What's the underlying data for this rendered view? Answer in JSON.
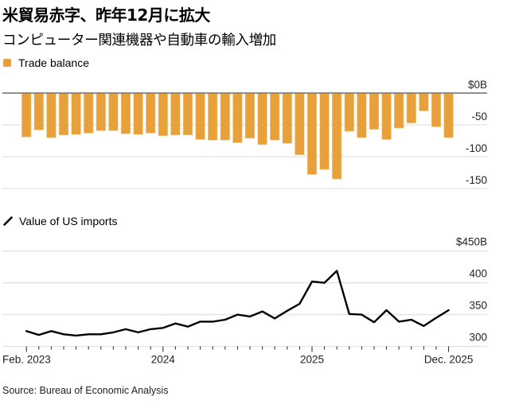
{
  "title": "米貿易赤字、昨年12月に拡大",
  "subtitle": "コンピューター関連機器や自動車の輸入増加",
  "source": "Source: Bureau of Economic Analysis",
  "colors": {
    "bar": "#E8A03A",
    "line": "#000000",
    "grid": "#e2e2e2",
    "zero_line": "#808080"
  },
  "chart_data": [
    {
      "type": "bar",
      "legend": "Trade balance",
      "legend_icon": "square-swatch-icon",
      "unit": "$B",
      "ylim": [
        -150,
        0
      ],
      "yticks": [
        0,
        -50,
        -100,
        -150
      ],
      "ytick_labels": [
        "$0B",
        "-50",
        "-100",
        "-150"
      ],
      "grid": true,
      "x_start": "Feb. 2023",
      "x_end": "Dec. 2025",
      "values": [
        -69,
        -58,
        -70,
        -66,
        -65,
        -63,
        -59,
        -59,
        -64,
        -65,
        -63,
        -67,
        -66,
        -66,
        -73,
        -74,
        -74,
        -78,
        -71,
        -81,
        -74,
        -79,
        -97,
        -128,
        -120,
        -135,
        -60,
        -70,
        -57,
        -73,
        -55,
        -47,
        -28,
        -53,
        -70
      ]
    },
    {
      "type": "line",
      "legend": "Value of US imports",
      "legend_icon": "line-swatch-icon",
      "unit": "$B",
      "ylim": [
        300,
        450
      ],
      "yticks": [
        450,
        400,
        350,
        300
      ],
      "ytick_labels": [
        "$450B",
        "400",
        "350",
        "300"
      ],
      "grid": true,
      "xtick_labels": [
        {
          "index": 0,
          "label": "Feb. 2023"
        },
        {
          "index": 11,
          "label": "2024"
        },
        {
          "index": 23,
          "label": "2025"
        },
        {
          "index": 34,
          "label": "Dec. 2025"
        }
      ],
      "values": [
        324,
        318,
        324,
        319,
        317,
        319,
        319,
        322,
        327,
        322,
        327,
        329,
        336,
        331,
        339,
        339,
        342,
        350,
        347,
        355,
        344,
        356,
        367,
        402,
        400,
        419,
        351,
        350,
        338,
        357,
        339,
        342,
        332,
        345,
        357
      ]
    }
  ]
}
